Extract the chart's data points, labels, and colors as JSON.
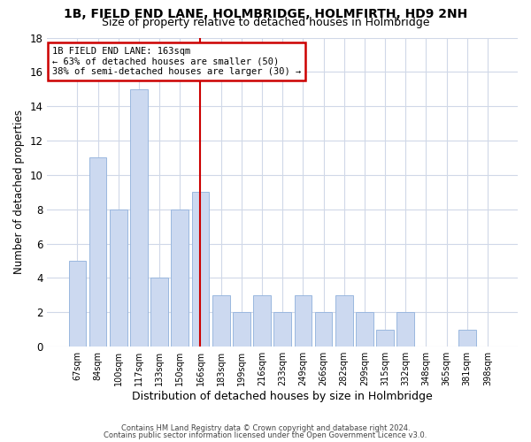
{
  "title1": "1B, FIELD END LANE, HOLMBRIDGE, HOLMFIRTH, HD9 2NH",
  "title2": "Size of property relative to detached houses in Holmbridge",
  "xlabel": "Distribution of detached houses by size in Holmbridge",
  "ylabel": "Number of detached properties",
  "categories": [
    "67sqm",
    "84sqm",
    "100sqm",
    "117sqm",
    "133sqm",
    "150sqm",
    "166sqm",
    "183sqm",
    "199sqm",
    "216sqm",
    "233sqm",
    "249sqm",
    "266sqm",
    "282sqm",
    "299sqm",
    "315sqm",
    "332sqm",
    "348sqm",
    "365sqm",
    "381sqm",
    "398sqm"
  ],
  "values": [
    5,
    11,
    8,
    15,
    4,
    8,
    9,
    3,
    2,
    3,
    2,
    3,
    2,
    3,
    2,
    1,
    2,
    0,
    0,
    1,
    0
  ],
  "bar_color": "#ccd9f0",
  "bar_edge_color": "#9ab8df",
  "property_line_idx": 6,
  "property_label": "1B FIELD END LANE: 163sqm",
  "annotation_line1": "← 63% of detached houses are smaller (50)",
  "annotation_line2": "38% of semi-detached houses are larger (30) →",
  "annotation_box_color": "white",
  "annotation_box_edge_color": "#cc0000",
  "vline_color": "#cc0000",
  "ylim": [
    0,
    18
  ],
  "yticks": [
    0,
    2,
    4,
    6,
    8,
    10,
    12,
    14,
    16,
    18
  ],
  "footer1": "Contains HM Land Registry data © Crown copyright and database right 2024.",
  "footer2": "Contains public sector information licensed under the Open Government Licence v3.0.",
  "bg_color": "#ffffff",
  "grid_color": "#d0d8e8",
  "title1_fontsize": 10,
  "title2_fontsize": 9
}
